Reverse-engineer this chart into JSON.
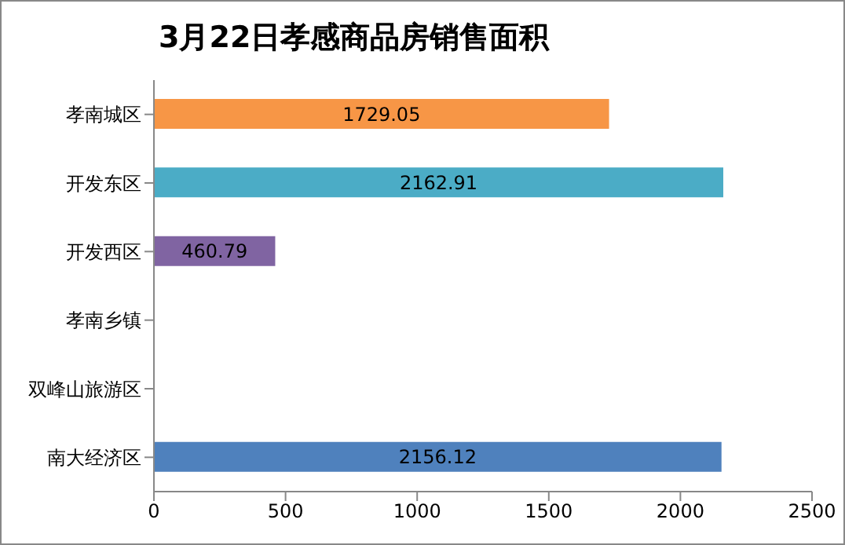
{
  "chart_data": {
    "type": "bar",
    "orientation": "horizontal",
    "title": "3月22日孝感商品房销售面积",
    "categories": [
      "孝南城区",
      "开发东区",
      "开发西区",
      "孝南乡镇",
      "双峰山旅游区",
      "南大经济区"
    ],
    "values": [
      1729.05,
      2162.91,
      460.79,
      null,
      null,
      2156.12
    ],
    "colors": [
      "#f79646",
      "#4bacc6",
      "#8064a2",
      null,
      null,
      "#4f81bd"
    ],
    "data_labels": true,
    "xlim": [
      0,
      2500
    ],
    "xticks": [
      0,
      500,
      1000,
      1500,
      2000,
      2500
    ],
    "grid": false
  }
}
